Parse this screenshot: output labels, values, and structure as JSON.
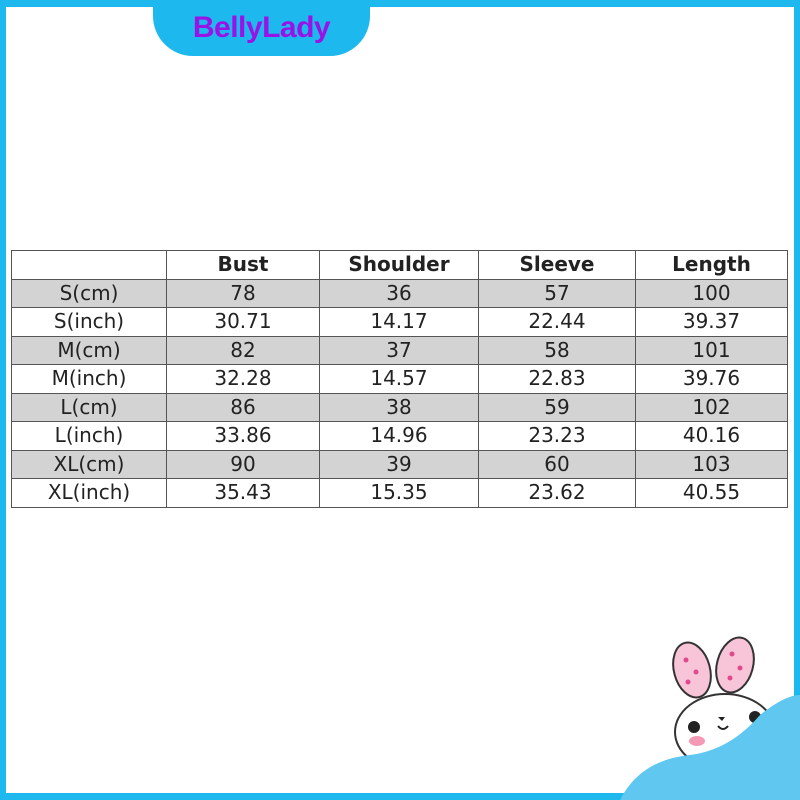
{
  "brand": "BellyLady",
  "colors": {
    "frame": "#1cb8ee",
    "brand_text": "#9a12e6",
    "row_shade": "#d3d3d3"
  },
  "table": {
    "headers": [
      "",
      "Bust",
      "Shoulder",
      "Sleeve",
      "Length"
    ],
    "rows": [
      [
        "S(cm)",
        "78",
        "36",
        "57",
        "100"
      ],
      [
        "S(inch)",
        "30.71",
        "14.17",
        "22.44",
        "39.37"
      ],
      [
        "M(cm)",
        "82",
        "37",
        "58",
        "101"
      ],
      [
        "M(inch)",
        "32.28",
        "14.57",
        "22.83",
        "39.76"
      ],
      [
        "L(cm)",
        "86",
        "38",
        "59",
        "102"
      ],
      [
        "L(inch)",
        "33.86",
        "14.96",
        "23.23",
        "40.16"
      ],
      [
        "XL(cm)",
        "90",
        "39",
        "60",
        "103"
      ],
      [
        "XL(inch)",
        "35.43",
        "15.35",
        "23.62",
        "40.55"
      ]
    ]
  },
  "decoration": "bunny-icon"
}
